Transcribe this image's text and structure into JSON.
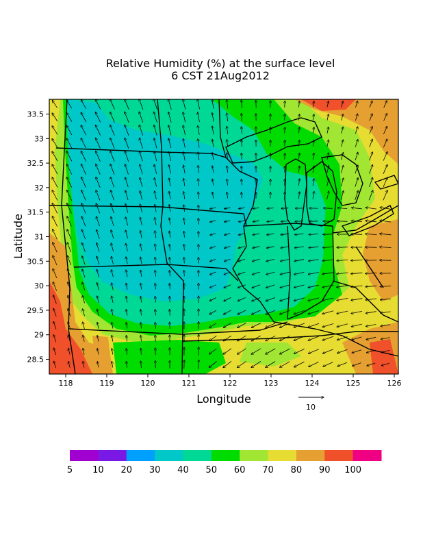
{
  "title": {
    "line1": "Relative Humidity (%) at the surface level",
    "line2": "6 CST 21Aug2012"
  },
  "axes": {
    "xlabel": "Longitude",
    "ylabel": "Latitude",
    "x_ticks": [
      "118",
      "119",
      "120",
      "121",
      "122",
      "123",
      "124",
      "125",
      "126"
    ],
    "y_ticks": [
      "33.5",
      "33",
      "32.5",
      "32",
      "31.5",
      "31",
      "30.5",
      "30",
      "29.5",
      "29",
      "28.5"
    ],
    "x_range": [
      117.6,
      126.1
    ],
    "y_range": [
      28.2,
      33.8
    ]
  },
  "vector_reference": {
    "label": "10"
  },
  "colorbar": {
    "labels": [
      "5",
      "10",
      "20",
      "30",
      "40",
      "50",
      "60",
      "70",
      "80",
      "90",
      "100"
    ],
    "colors": [
      "#a000d0",
      "#7a18e6",
      "#00a0ff",
      "#00c8c8",
      "#00d896",
      "#00dc00",
      "#a0e632",
      "#e6dc32",
      "#e6a032",
      "#f0502a",
      "#f00082"
    ]
  },
  "field_colors": {
    "very_wet": "#f0502a",
    "wet": "#e6a032",
    "humid": "#e6dc32",
    "moist": "#a0e632",
    "mid": "#00dc00",
    "drier": "#00d896",
    "dry": "#00c8c8"
  }
}
